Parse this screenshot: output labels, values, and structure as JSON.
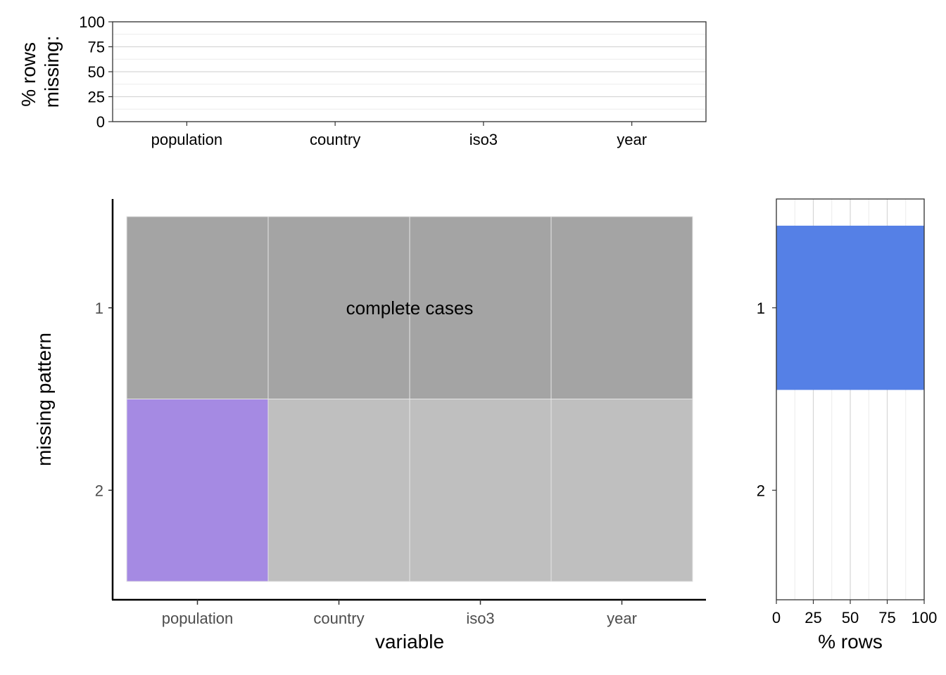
{
  "chart_data": [
    {
      "type": "bar",
      "categories": [
        "population",
        "country",
        "iso3",
        "year"
      ],
      "values": [
        0,
        0,
        0,
        0
      ],
      "ylabel": "% rows\nmissing:",
      "ylim": [
        0,
        100
      ],
      "yticks": [
        0,
        25,
        50,
        75,
        100
      ],
      "grid": true
    },
    {
      "type": "heatmap",
      "xlabel": "variable",
      "ylabel": "missing pattern",
      "variables": [
        "population",
        "country",
        "iso3",
        "year"
      ],
      "patterns": [
        "1",
        "2"
      ],
      "cells": [
        {
          "pattern": "1",
          "variable": "population",
          "state": "complete"
        },
        {
          "pattern": "1",
          "variable": "country",
          "state": "complete"
        },
        {
          "pattern": "1",
          "variable": "iso3",
          "state": "complete"
        },
        {
          "pattern": "1",
          "variable": "year",
          "state": "complete"
        },
        {
          "pattern": "2",
          "variable": "population",
          "state": "missing"
        },
        {
          "pattern": "2",
          "variable": "country",
          "state": "present"
        },
        {
          "pattern": "2",
          "variable": "iso3",
          "state": "present"
        },
        {
          "pattern": "2",
          "variable": "year",
          "state": "present"
        }
      ],
      "annotation": "complete cases",
      "colors": {
        "complete": "#a4a4a4",
        "missing": "#a58ae3",
        "present": "#bfbfbf"
      }
    },
    {
      "type": "bar",
      "orientation": "horizontal",
      "categories": [
        "1",
        "2"
      ],
      "values": [
        100,
        0
      ],
      "xlabel": "% rows",
      "xlim": [
        0,
        100
      ],
      "xticks": [
        0,
        25,
        50,
        75,
        100
      ],
      "color": "#5580e6",
      "grid": true
    }
  ]
}
